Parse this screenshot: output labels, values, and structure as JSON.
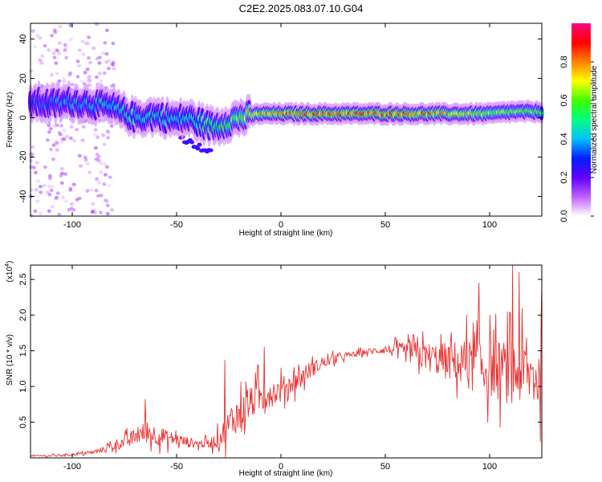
{
  "figure_title": "C2E2.2025.083.07.10.G04",
  "chart_data": [
    {
      "type": "heatmap",
      "xlabel": "Height of straight line (km)",
      "ylabel": "Frequency (Hz)",
      "xlim": [
        -120,
        125
      ],
      "ylim": [
        -50,
        48
      ],
      "xticks": [
        -100,
        -50,
        0,
        50,
        100
      ],
      "yticks": [
        -40,
        -20,
        0,
        20,
        40
      ],
      "colorbar": {
        "label": "Normalized spectral amplitude",
        "range": [
          0,
          1
        ],
        "ticks": [
          "0.0",
          "0.2",
          "0.4",
          "0.6",
          "0.8"
        ],
        "tick_values": [
          0.0,
          0.2,
          0.4,
          0.6,
          0.8
        ],
        "colormap": [
          "#ffffff",
          "#c060ff",
          "#6000ff",
          "#0020ff",
          "#00c0ff",
          "#00ff80",
          "#40ff00",
          "#ffff00",
          "#ff8000",
          "#ff0000",
          "#ff0080"
        ]
      },
      "ridge": {
        "x": [
          -120,
          -110,
          -100,
          -90,
          -80,
          -70,
          -60,
          -50,
          -45,
          -40,
          -35,
          -30,
          -25,
          -20,
          -15,
          -10,
          0,
          10,
          20,
          30,
          40,
          50,
          60,
          70,
          80,
          90,
          100,
          110,
          120,
          125
        ],
        "y": [
          8,
          7,
          8,
          7,
          5,
          0,
          1,
          -1,
          0,
          -2,
          -4,
          -4,
          -2,
          0,
          1,
          2,
          2,
          2,
          2,
          2,
          2,
          2,
          2,
          2,
          2,
          2,
          2,
          3,
          3,
          3
        ],
        "peak_amplitude": [
          0.35,
          0.4,
          0.45,
          0.45,
          0.5,
          0.5,
          0.5,
          0.5,
          0.5,
          0.55,
          0.6,
          0.6,
          0.65,
          0.7,
          0.8,
          0.85,
          0.9,
          0.95,
          0.95,
          0.95,
          0.95,
          0.95,
          0.95,
          0.9,
          0.85,
          0.8,
          0.75,
          0.7,
          0.7,
          0.65
        ]
      }
    },
    {
      "type": "line",
      "xlabel": "Height of straight line (km)",
      "ylabel": "SNR (10 * v/v)",
      "y_scale_label": "(x10",
      "y_scale_exponent": "4",
      "xlim": [
        -120,
        125
      ],
      "ylim": [
        0,
        2.7
      ],
      "xticks": [
        -100,
        -50,
        0,
        50,
        100
      ],
      "yticks": [
        0.5,
        1.0,
        1.5,
        2.0,
        2.5
      ],
      "ytick_labels": [
        "0.5",
        "1.0",
        "1.5",
        "2.0",
        "2.5"
      ],
      "series": [
        {
          "color": "#e83030",
          "x": [
            -120,
            -110,
            -100,
            -95,
            -90,
            -85,
            -80,
            -75,
            -70,
            -65,
            -60,
            -55,
            -50,
            -45,
            -40,
            -35,
            -30,
            -25,
            -20,
            -15,
            -10,
            -5,
            0,
            5,
            10,
            15,
            20,
            25,
            30,
            35,
            40,
            45,
            50,
            55,
            60,
            65,
            70,
            75,
            80,
            85,
            90,
            95,
            100,
            105,
            110,
            115,
            120,
            125
          ],
          "y": [
            0.03,
            0.03,
            0.05,
            0.06,
            0.08,
            0.12,
            0.18,
            0.22,
            0.3,
            0.36,
            0.32,
            0.28,
            0.26,
            0.22,
            0.2,
            0.2,
            0.25,
            0.45,
            0.65,
            0.75,
            0.85,
            0.9,
            0.95,
            1.05,
            1.15,
            1.25,
            1.32,
            1.38,
            1.42,
            1.45,
            1.48,
            1.5,
            1.52,
            1.5,
            1.48,
            1.45,
            1.42,
            1.38,
            1.35,
            1.35,
            1.3,
            1.28,
            1.25,
            1.22,
            1.2,
            1.2,
            1.15,
            1.1
          ],
          "noise_amplitude": [
            0.02,
            0.03,
            0.03,
            0.04,
            0.05,
            0.08,
            0.15,
            0.18,
            0.22,
            0.3,
            0.28,
            0.22,
            0.18,
            0.15,
            0.12,
            0.12,
            0.25,
            0.45,
            0.5,
            0.45,
            0.4,
            0.38,
            0.35,
            0.3,
            0.28,
            0.22,
            0.15,
            0.12,
            0.1,
            0.08,
            0.08,
            0.1,
            0.12,
            0.2,
            0.28,
            0.35,
            0.4,
            0.45,
            0.55,
            0.6,
            0.7,
            0.75,
            0.8,
            0.85,
            0.9,
            0.9,
            0.9,
            0.9
          ],
          "peaks": [
            {
              "x": -65,
              "y": 0.82
            },
            {
              "x": -27,
              "y": 1.37
            },
            {
              "x": -11,
              "y": 1.3
            },
            {
              "x": -8,
              "y": 1.55
            },
            {
              "x": 2,
              "y": 1.0
            },
            {
              "x": 89,
              "y": 2.0
            },
            {
              "x": 95,
              "y": 2.45
            },
            {
              "x": 111,
              "y": 2.7
            },
            {
              "x": 114,
              "y": 2.6
            },
            {
              "x": 125,
              "y": 2.4
            }
          ]
        }
      ]
    }
  ]
}
